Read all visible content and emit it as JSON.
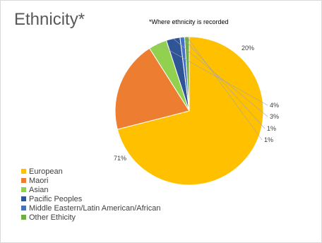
{
  "chart_data": {
    "type": "pie",
    "title": "Ethnicity*",
    "subtitle": "*Where ethnicity is recorded",
    "categories": [
      "European",
      "Maori",
      "Asian",
      "Pacific Peoples",
      "Middle Eastern/Latin American/African",
      "Other Ethicity"
    ],
    "values": [
      71,
      20,
      4,
      3,
      1,
      1
    ],
    "data_labels": [
      "71%",
      "20%",
      "4%",
      "3%",
      "1%",
      "1%"
    ],
    "colors": [
      "#FFC000",
      "#ED7D31",
      "#92D050",
      "#2F5597",
      "#4472C4",
      "#70AD47"
    ],
    "start_angle_deg": 0,
    "legend_position": "bottom-left"
  }
}
